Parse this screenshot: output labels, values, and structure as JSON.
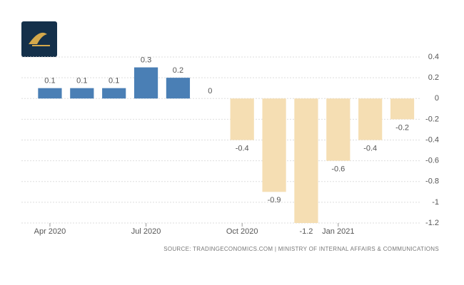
{
  "chart_data": {
    "type": "bar",
    "categories": [
      "Apr 2020",
      null,
      null,
      "Jul 2020",
      null,
      null,
      "Oct 2020",
      null,
      null,
      "Jan 2021",
      null,
      null
    ],
    "values": [
      0.1,
      0.1,
      0.1,
      0.3,
      0.2,
      0,
      -0.4,
      -0.9,
      -1.2,
      -0.6,
      -0.4,
      -0.2
    ],
    "color": "#4a7fb5",
    "negative_color": "#f5deb3",
    "ylim": [
      -1.2,
      0.4
    ],
    "yticks": [
      0.4,
      0.2,
      0,
      -0.2,
      -0.4,
      -0.6,
      -0.8,
      -1,
      -1.2
    ],
    "grid": true,
    "source": "SOURCE: TRADINGECONOMICS.COM | MINISTRY OF INTERNAL AFFAIRS & COMMUNICATIONS"
  }
}
